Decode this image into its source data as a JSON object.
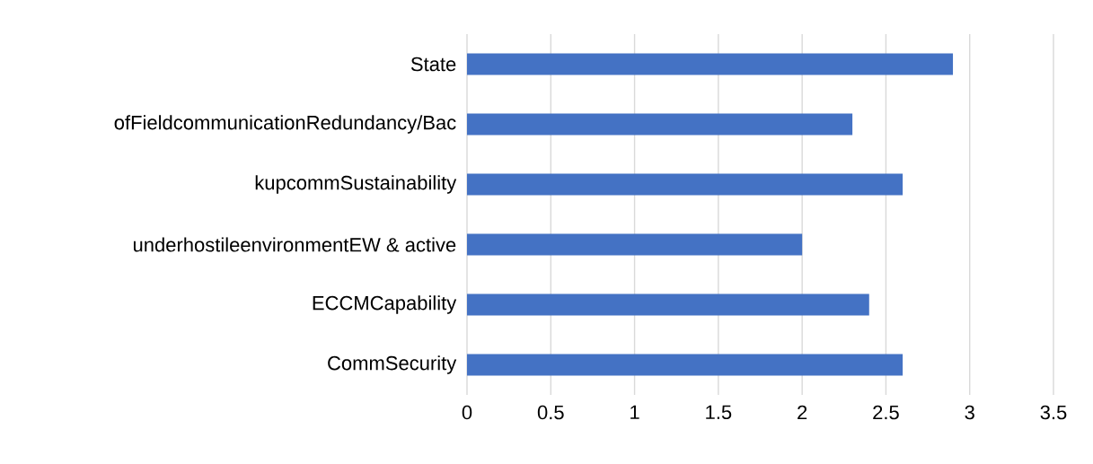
{
  "chart_data": {
    "type": "bar",
    "orientation": "horizontal",
    "categories": [
      "State",
      "ofFieldcommunicationRedundancy/Bac",
      "kupcommSustainability",
      "underhostileenvironmentEW & active",
      "ECCMCapability",
      "CommSecurity"
    ],
    "values": [
      2.9,
      2.3,
      2.6,
      2.0,
      2.4,
      2.6
    ],
    "color": "#4472c4",
    "xlim": [
      0,
      3.5
    ],
    "xticks": [
      0,
      0.5,
      1,
      1.5,
      2,
      2.5,
      3,
      3.5
    ],
    "grid": "x"
  }
}
